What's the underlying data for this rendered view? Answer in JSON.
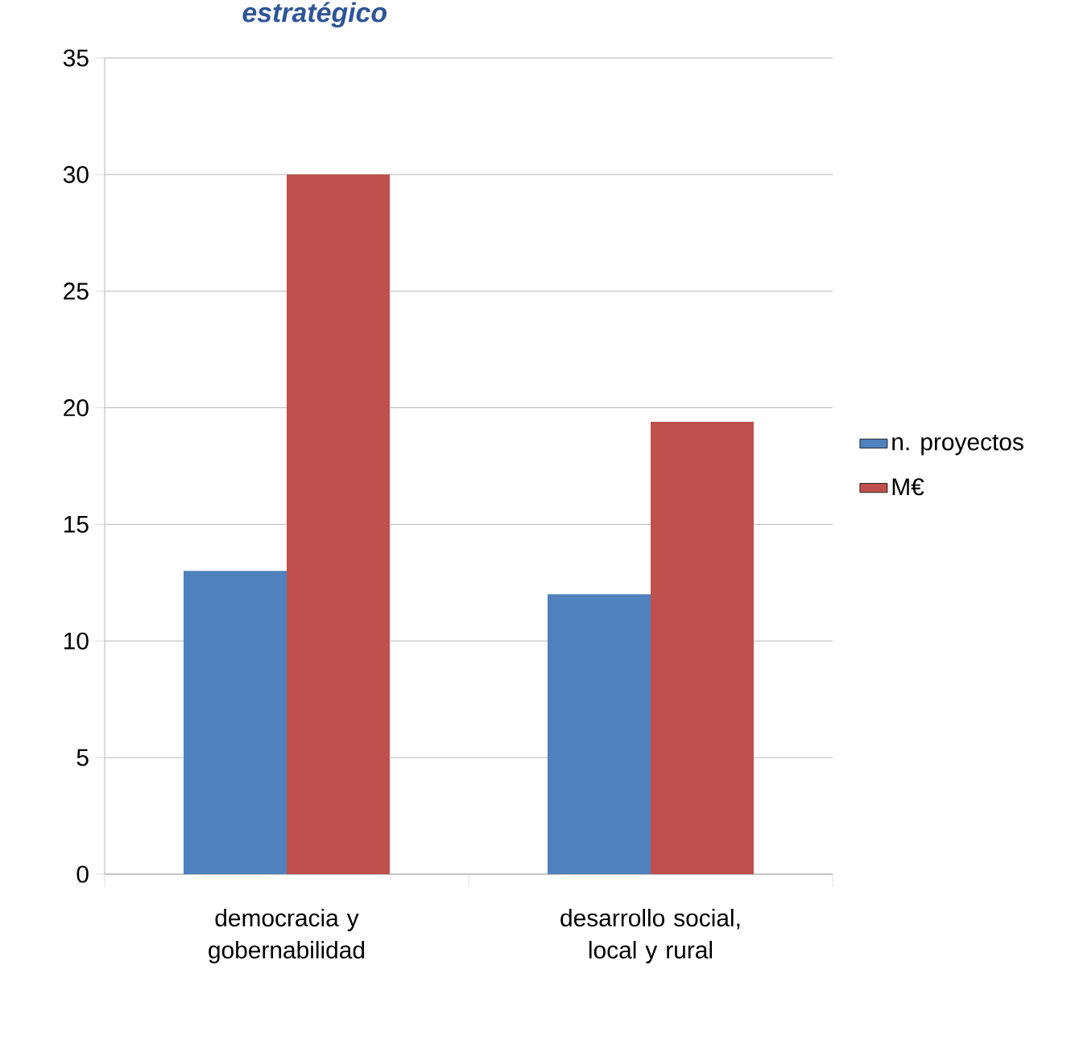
{
  "chart_data": {
    "type": "bar",
    "title": "estratégico",
    "categories": [
      "democracia y gobernabilidad",
      "desarrollo social, local y rural"
    ],
    "series": [
      {
        "name": "n. proyectos",
        "color": "#4f81bd",
        "values": [
          13,
          12
        ]
      },
      {
        "name": "M€",
        "color": "#c0504d",
        "values": [
          30,
          19.4
        ]
      }
    ],
    "ylim": [
      0,
      35
    ],
    "yticks": [
      0,
      5,
      10,
      15,
      20,
      25,
      30,
      35
    ],
    "grid": "y",
    "legend": "right"
  }
}
